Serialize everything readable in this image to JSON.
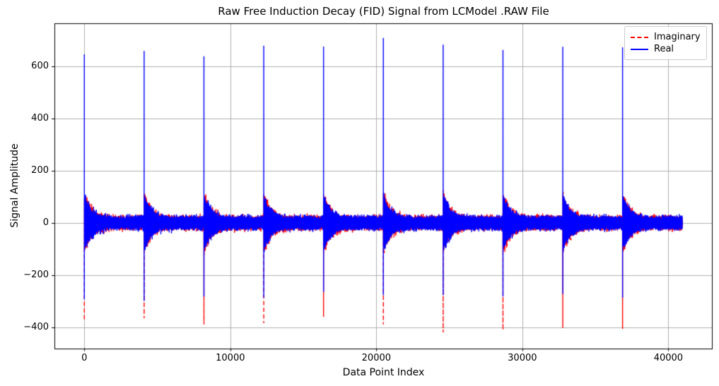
{
  "chart_data": {
    "type": "line",
    "title": "Raw Free Induction Decay (FID) Signal from LCModel .RAW File",
    "xlabel": "Data Point Index",
    "ylabel": "Signal Amplitude",
    "background": "#ffffff",
    "axis_color": "#000000",
    "grid": true,
    "grid_color": "#b0b0b0",
    "xlim": [
      -2048,
      43008
    ],
    "ylim": [
      -480,
      764
    ],
    "xticks": [
      {
        "value": 0,
        "label": "0"
      },
      {
        "value": 10000,
        "label": "10000"
      },
      {
        "value": 20000,
        "label": "20000"
      },
      {
        "value": 30000,
        "label": "30000"
      },
      {
        "value": 40000,
        "label": "40000"
      }
    ],
    "yticks": [
      {
        "value": -400,
        "label": "−400"
      },
      {
        "value": -200,
        "label": "−200"
      },
      {
        "value": 0,
        "label": "0"
      },
      {
        "value": 200,
        "label": "200"
      },
      {
        "value": 400,
        "label": "400"
      },
      {
        "value": 600,
        "label": "600"
      }
    ],
    "legend": {
      "position": "upper right",
      "entries": [
        {
          "label": "Imaginary",
          "color": "#ff0000",
          "linestyle": "dashed"
        },
        {
          "label": "Real",
          "color": "#0000ff",
          "linestyle": "solid"
        }
      ]
    },
    "series_structure": {
      "description": "Ten concatenated FID acquisitions; each begins with a sharp spike followed by a rapidly decaying oscillation over a constant noise floor.",
      "n_points": 40960,
      "n_fids": 10,
      "points_per_fid": 4096,
      "fid_start_indices": [
        0,
        4096,
        8192,
        12288,
        16384,
        20480,
        24576,
        28672,
        32768,
        36864
      ],
      "real_spike_peaks": [
        645,
        658,
        638,
        678,
        675,
        708,
        682,
        662,
        674,
        672
      ],
      "real_spike_troughs": [
        -293,
        -299,
        -282,
        -286,
        -264,
        -277,
        -277,
        -282,
        -272,
        -286
      ],
      "imag_spike_troughs": [
        -369,
        -365,
        -389,
        -384,
        -360,
        -389,
        -419,
        -410,
        -402,
        -406
      ],
      "noise_peak_amplitude": 40,
      "post_spike_burst_amplitude": 95,
      "post_spike_decay_points": 550
    }
  }
}
